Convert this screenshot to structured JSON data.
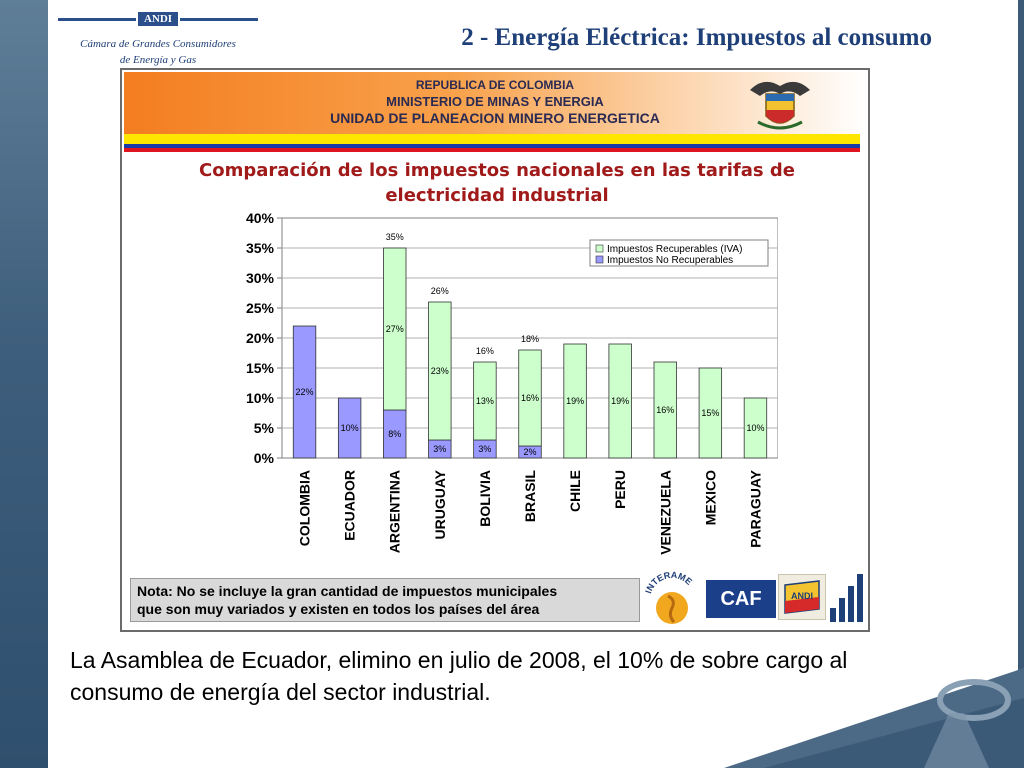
{
  "logo": {
    "brand": "ANDI",
    "line1": "Cámara de Grandes Consumidores",
    "line2": "de Energía y Gas"
  },
  "slide_title": "2 - Energía Eléctrica: Impuestos al consumo",
  "header": {
    "line1": "REPUBLICA DE COLOMBIA",
    "line2": "MINISTERIO DE MINAS Y ENERGIA",
    "line3": "UNIDAD DE PLANEACION MINERO ENERGETICA"
  },
  "chart_data": {
    "type": "bar",
    "stacked": true,
    "title": "Comparación de los impuestos nacionales en las tarifas de electricidad industrial",
    "xlabel": "",
    "ylabel": "",
    "ylim": [
      0,
      40
    ],
    "yticks": [
      "0%",
      "5%",
      "10%",
      "15%",
      "20%",
      "25%",
      "30%",
      "35%",
      "40%"
    ],
    "grid": true,
    "legend_position": "top-right",
    "categories": [
      "COLOMBIA",
      "ECUADOR",
      "ARGENTINA",
      "URUGUAY",
      "BOLIVIA",
      "BRASIL",
      "CHILE",
      "PERU",
      "VENEZUELA",
      "MEXICO",
      "PARAGUAY"
    ],
    "series": [
      {
        "name": "Impuestos No Recuperables",
        "color": "#9999ff",
        "values": [
          22,
          10,
          8,
          3,
          3,
          2,
          0,
          0,
          0,
          0,
          0
        ],
        "labels": [
          "22%",
          "10%",
          "8%",
          "3%",
          "3%",
          "2%",
          "",
          "",
          "",
          "",
          ""
        ]
      },
      {
        "name": "Impuestos Recuperables (IVA)",
        "color": "#ccffcc",
        "values": [
          0,
          0,
          27,
          23,
          13,
          16,
          19,
          19,
          16,
          15,
          10
        ],
        "labels": [
          "",
          "",
          "27%",
          "23%",
          "13%",
          "16%",
          "19%",
          "19%",
          "16%",
          "15%",
          "10%"
        ]
      }
    ],
    "totals": [
      "",
      "",
      "35%",
      "26%",
      "16%",
      "18%",
      "",
      "",
      "",
      "",
      ""
    ]
  },
  "note": {
    "line1": "Nota: No se incluye la gran cantidad de impuestos municipales",
    "line2": "que son muy variados y existen en todos los países del área"
  },
  "logos": {
    "interame": "INTERAME",
    "caf": "CAF",
    "andi": "ANDI"
  },
  "body": {
    "line1": "La Asamblea de Ecuador, elimino en julio de 2008, el 10% de sobre cargo al",
    "line2": "consumo de energía del sector industrial."
  },
  "colors": {
    "title_blue": "#1e3f77",
    "chart_title_red": "#a11a1a",
    "header_orange": "#f47d20"
  }
}
